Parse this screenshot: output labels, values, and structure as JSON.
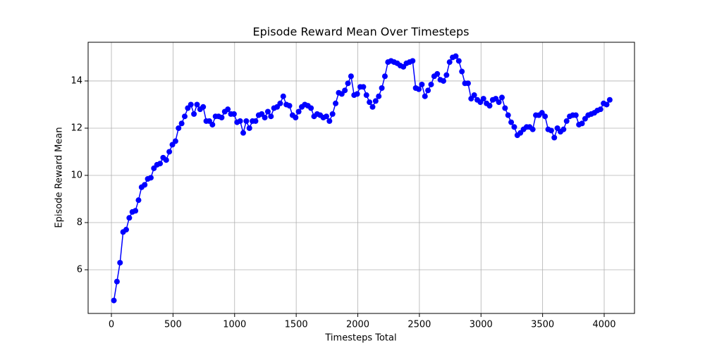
{
  "chart_data": {
    "type": "line",
    "title": "Episode Reward Mean Over Timesteps",
    "x_label": "Timesteps Total",
    "y_label": "Episode Reward Mean",
    "x": [
      20,
      45,
      70,
      95,
      120,
      145,
      170,
      195,
      220,
      245,
      270,
      295,
      320,
      345,
      370,
      395,
      420,
      445,
      470,
      495,
      520,
      545,
      570,
      595,
      620,
      645,
      670,
      695,
      720,
      745,
      770,
      795,
      820,
      845,
      870,
      895,
      920,
      945,
      970,
      995,
      1020,
      1045,
      1070,
      1095,
      1120,
      1145,
      1170,
      1195,
      1220,
      1245,
      1270,
      1295,
      1320,
      1345,
      1370,
      1395,
      1420,
      1445,
      1470,
      1495,
      1520,
      1545,
      1570,
      1595,
      1620,
      1645,
      1670,
      1695,
      1720,
      1745,
      1770,
      1795,
      1820,
      1845,
      1870,
      1895,
      1920,
      1945,
      1970,
      1995,
      2020,
      2045,
      2070,
      2095,
      2120,
      2145,
      2170,
      2195,
      2220,
      2245,
      2270,
      2295,
      2320,
      2345,
      2370,
      2395,
      2420,
      2445,
      2470,
      2495,
      2520,
      2545,
      2570,
      2595,
      2620,
      2645,
      2670,
      2695,
      2720,
      2745,
      2770,
      2795,
      2820,
      2845,
      2870,
      2895,
      2920,
      2945,
      2970,
      2995,
      3020,
      3045,
      3070,
      3095,
      3120,
      3145,
      3170,
      3195,
      3220,
      3245,
      3270,
      3295,
      3320,
      3345,
      3370,
      3395,
      3420,
      3445,
      3470,
      3495,
      3520,
      3545,
      3570,
      3595,
      3620,
      3645,
      3670,
      3695,
      3720,
      3745,
      3770,
      3795,
      3820,
      3845,
      3870,
      3895,
      3920,
      3945,
      3970,
      3995,
      4020,
      4045
    ],
    "series": [
      {
        "color": "#0000ff",
        "values": [
          4.7,
          5.5,
          6.3,
          7.6,
          7.7,
          8.2,
          8.45,
          8.5,
          8.95,
          9.5,
          9.6,
          9.85,
          9.9,
          10.3,
          10.45,
          10.5,
          10.75,
          10.65,
          11.0,
          11.3,
          11.45,
          12.0,
          12.2,
          12.5,
          12.85,
          13.0,
          12.6,
          13.0,
          12.8,
          12.9,
          12.3,
          12.3,
          12.15,
          12.5,
          12.5,
          12.45,
          12.7,
          12.8,
          12.6,
          12.6,
          12.25,
          12.3,
          11.8,
          12.3,
          12.0,
          12.3,
          12.3,
          12.55,
          12.6,
          12.45,
          12.7,
          12.5,
          12.85,
          12.9,
          13.05,
          13.35,
          13.0,
          12.95,
          12.55,
          12.45,
          12.7,
          12.9,
          13.0,
          12.95,
          12.85,
          12.5,
          12.6,
          12.55,
          12.45,
          12.5,
          12.3,
          12.6,
          13.05,
          13.5,
          13.45,
          13.6,
          13.9,
          14.2,
          13.4,
          13.45,
          13.75,
          13.75,
          13.4,
          13.1,
          12.9,
          13.15,
          13.35,
          13.7,
          14.2,
          14.8,
          14.85,
          14.8,
          14.75,
          14.65,
          14.6,
          14.75,
          14.8,
          14.85,
          13.7,
          13.65,
          13.85,
          13.35,
          13.6,
          13.85,
          14.2,
          14.3,
          14.05,
          14.0,
          14.25,
          14.8,
          15.0,
          15.05,
          14.85,
          14.4,
          13.9,
          13.9,
          13.25,
          13.4,
          13.2,
          13.1,
          13.25,
          13.05,
          12.95,
          13.2,
          13.25,
          13.1,
          13.3,
          12.85,
          12.55,
          12.25,
          12.05,
          11.7,
          11.8,
          11.95,
          12.05,
          12.05,
          11.95,
          12.55,
          12.55,
          12.65,
          12.5,
          11.95,
          11.9,
          11.6,
          12.0,
          11.85,
          11.95,
          12.3,
          12.5,
          12.55,
          12.55,
          12.15,
          12.2,
          12.4,
          12.55,
          12.6,
          12.65,
          12.75,
          12.8,
          13.05,
          13.0,
          13.2
        ]
      }
    ],
    "xlim": [
      -189,
      4246
    ],
    "ylim": [
      4.15,
      15.64
    ],
    "xticks": [
      0,
      500,
      1000,
      1500,
      2000,
      2500,
      3000,
      3500,
      4000
    ],
    "yticks": [
      6,
      8,
      10,
      12,
      14
    ],
    "grid": true
  }
}
